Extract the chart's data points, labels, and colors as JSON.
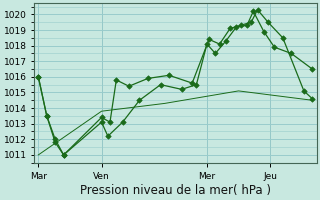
{
  "bg_color": "#c8e8e0",
  "grid_color": "#99cccc",
  "line_color": "#1a6b1a",
  "title": "Pression niveau de la mer( hPa )",
  "xlabels": [
    "Mar",
    "Ven",
    "Mer",
    "Jeu"
  ],
  "xtick_positions": [
    0,
    3,
    8,
    11
  ],
  "vline_positions": [
    3,
    8,
    11
  ],
  "ylim": [
    1010.5,
    1020.7
  ],
  "yticks": [
    1011,
    1012,
    1013,
    1014,
    1015,
    1016,
    1017,
    1018,
    1019,
    1020
  ],
  "series1_x": [
    0,
    0.4,
    0.8,
    1.2,
    3.0,
    3.3,
    4.0,
    4.8,
    5.8,
    6.8,
    7.5,
    8.0,
    8.4,
    8.9,
    9.4,
    9.9,
    10.2,
    10.7,
    11.2,
    12.0,
    13.0
  ],
  "series1_y": [
    1016.0,
    1013.5,
    1012.0,
    1011.0,
    1013.1,
    1012.2,
    1013.1,
    1014.5,
    1015.5,
    1015.2,
    1015.5,
    1018.1,
    1017.5,
    1018.3,
    1019.2,
    1019.3,
    1020.2,
    1018.9,
    1017.9,
    1017.5,
    1016.5
  ],
  "series2_x": [
    0,
    0.4,
    0.8,
    1.2,
    3.0,
    3.4,
    3.7,
    4.3,
    5.2,
    6.2,
    7.3,
    8.1,
    8.6,
    9.1,
    9.6,
    10.1,
    10.4,
    10.9,
    11.6,
    12.6,
    13.0
  ],
  "series2_y": [
    1016.0,
    1013.5,
    1011.8,
    1011.0,
    1013.4,
    1013.1,
    1015.8,
    1015.4,
    1015.9,
    1016.1,
    1015.6,
    1018.4,
    1018.1,
    1019.1,
    1019.3,
    1019.5,
    1020.3,
    1019.5,
    1018.5,
    1015.1,
    1014.6
  ],
  "series3_x": [
    0,
    3.0,
    6.0,
    9.5,
    13.0
  ],
  "series3_y": [
    1011.0,
    1013.8,
    1014.3,
    1015.1,
    1014.5
  ],
  "xmax": 13.0,
  "title_fontsize": 8.5,
  "tick_fontsize": 6.5
}
